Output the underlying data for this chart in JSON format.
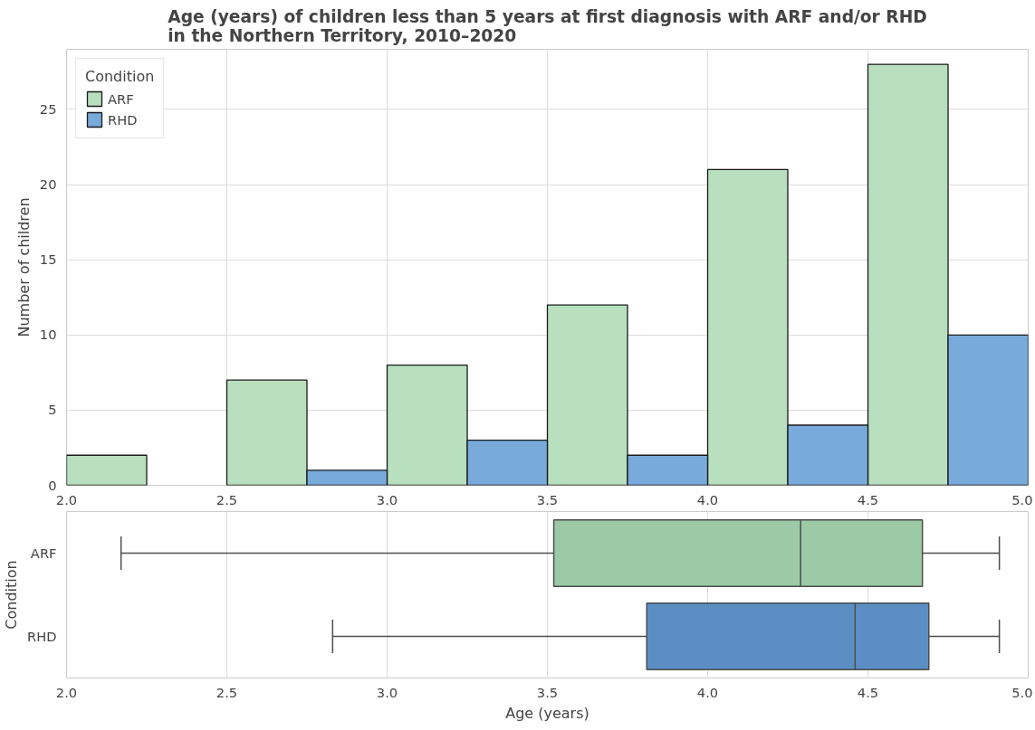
{
  "chart_data": [
    {
      "type": "histogram",
      "title": "Age (years) of children less than 5 years at first diagnosis with ARF and/or RHD in the Northern Territory, 2010–2020",
      "ylabel": "Number of children",
      "legend_title": "Condition",
      "bins": [
        2.0,
        2.5,
        3.0,
        3.5,
        4.0,
        4.5,
        5.0
      ],
      "series": [
        {
          "name": "ARF",
          "color": "#b8dfbe",
          "values": [
            2,
            7,
            8,
            12,
            21,
            28
          ]
        },
        {
          "name": "RHD",
          "color": "#78aadb",
          "values": [
            0,
            1,
            3,
            2,
            4,
            10
          ]
        }
      ],
      "xlim": [
        2.0,
        5.0
      ],
      "xticks": [
        {
          "value": 2,
          "label": "2.0"
        },
        2.5,
        {
          "value": 3,
          "label": "3.0"
        },
        3.5,
        {
          "value": 4,
          "label": "4.0"
        },
        4.5,
        {
          "value": 5,
          "label": "5.0"
        }
      ],
      "ylim": [
        0,
        29
      ],
      "yticks": [
        0,
        5,
        10,
        15,
        20,
        25
      ],
      "grid": true,
      "legend": "top left"
    },
    {
      "type": "box",
      "orientation": "horizontal",
      "xlabel": "Age (years)",
      "ylabel": "Condition",
      "categories": [
        "ARF",
        "RHD"
      ],
      "colors": [
        "#9ccaa6",
        "#5b8fc4"
      ],
      "boxes": [
        {
          "low": 2.17,
          "q1": 3.52,
          "median": 4.29,
          "q3": 4.67,
          "high": 4.91
        },
        {
          "low": 2.83,
          "q1": 3.81,
          "median": 4.46,
          "q3": 4.69,
          "high": 4.91
        }
      ],
      "xlim": [
        2.0,
        5.0
      ],
      "xticks": [
        {
          "value": 2,
          "label": "2.0"
        },
        2.5,
        {
          "value": 3,
          "label": "3.0"
        },
        3.5,
        {
          "value": 4,
          "label": "4.0"
        },
        4.5,
        {
          "value": 5,
          "label": "5.0"
        }
      ],
      "grid": "x"
    }
  ]
}
